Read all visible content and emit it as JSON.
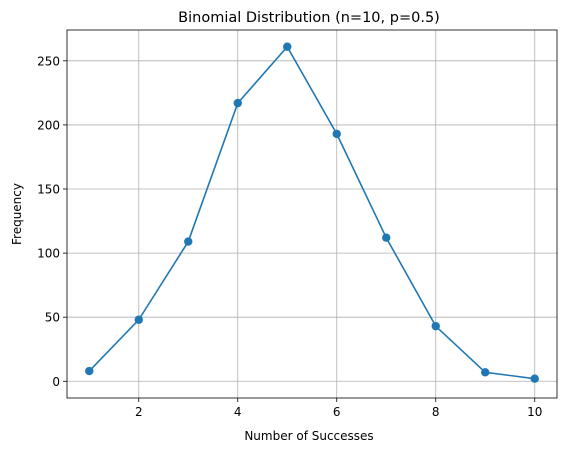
{
  "chart_data": {
    "type": "line",
    "title": "Binomial Distribution (n=10, p=0.5)",
    "xlabel": "Number of Successes",
    "ylabel": "Frequency",
    "x": [
      1,
      2,
      3,
      4,
      5,
      6,
      7,
      8,
      9,
      10
    ],
    "series": [
      {
        "values": [
          8,
          48,
          109,
          217,
          261,
          193,
          112,
          43,
          7,
          2
        ],
        "color": "#1f77b4",
        "marker": "circle"
      }
    ],
    "xlim": [
      0.55,
      10.45
    ],
    "ylim": [
      -13.05,
      274.05
    ],
    "xticks": [
      2,
      4,
      6,
      8,
      10
    ],
    "yticks": [
      0,
      50,
      100,
      150,
      200,
      250
    ],
    "grid": true
  }
}
